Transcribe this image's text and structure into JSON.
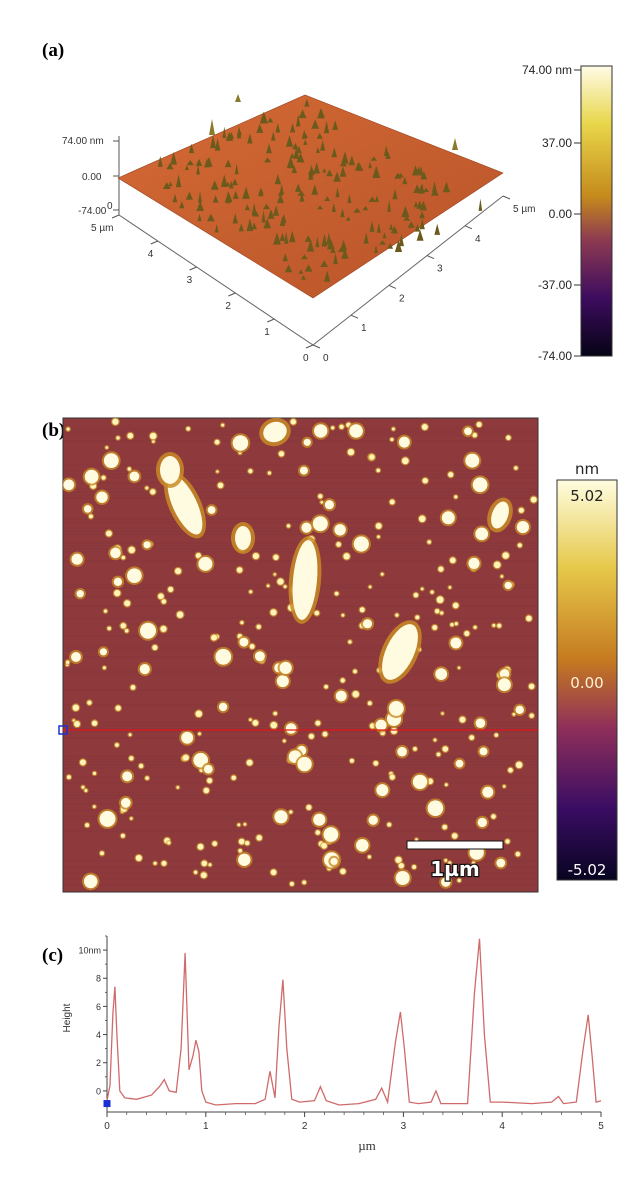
{
  "panels": {
    "a": {
      "label": "(a)",
      "z_top_label": "74.00 nm",
      "z_mid_label": "0.00",
      "z_bottom_label": "-74.00",
      "left_axis_ticks": [
        "5 µm",
        "4",
        "3",
        "2",
        "1",
        "0"
      ],
      "right_axis_ticks": [
        "0",
        "1",
        "2",
        "3",
        "4",
        "5 µm"
      ],
      "right_axis_zero": "0",
      "colorbar": {
        "labels": [
          "74.00 nm",
          "37.00",
          "0.00",
          "-37.00",
          "-74.00"
        ],
        "colors": [
          "#fffbe6",
          "#e8d64a",
          "#c58a1b",
          "#8d3a52",
          "#3d0c5e",
          "#060316"
        ]
      },
      "surface_color": "#c9602e",
      "peak_color": "#6b5a1c"
    },
    "b": {
      "label": "(b)",
      "scale_bar_label": "1µm",
      "colorbar": {
        "unit": "nm",
        "labels": [
          "5.02",
          "0.00",
          "-5.02"
        ],
        "colors": [
          "#fffde0",
          "#e6c84a",
          "#c57a20",
          "#8f2f5a",
          "#3a0d64",
          "#080420"
        ]
      },
      "background_color": "#8e3a3c",
      "particle_color": "#fff3b8",
      "profile_line_color": "#e01818"
    },
    "c": {
      "label": "(c)",
      "chart_data": {
        "type": "line",
        "title": "",
        "xlabel": "µm",
        "ylabel": "Height",
        "xlim": [
          0,
          5
        ],
        "ylim": [
          -1.5,
          11
        ],
        "x_ticks": [
          0,
          1,
          2,
          3,
          4,
          5
        ],
        "y_ticks": [
          {
            "value": 10,
            "label": "10nm"
          },
          {
            "value": 8,
            "label": "8"
          },
          {
            "value": 6,
            "label": "6"
          },
          {
            "value": 4,
            "label": "4"
          },
          {
            "value": 2,
            "label": "2"
          },
          {
            "value": 0,
            "label": "0"
          }
        ],
        "line_color": "#d06a6a",
        "marker": {
          "x": 0,
          "y": -0.9,
          "color": "#1a2fd6"
        },
        "series": [
          {
            "x": [
              0,
              0.03,
              0.06,
              0.08,
              0.1,
              0.13,
              0.18,
              0.3,
              0.45,
              0.53,
              0.58,
              0.63,
              0.7,
              0.75,
              0.79,
              0.83,
              0.87,
              0.9,
              0.93,
              0.96,
              1.0,
              1.1,
              1.3,
              1.5,
              1.6,
              1.65,
              1.7,
              1.74,
              1.78,
              1.82,
              1.87,
              1.95,
              2.1,
              2.16,
              2.22,
              2.35,
              2.55,
              2.72,
              2.78,
              2.84,
              2.92,
              2.97,
              3.01,
              3.06,
              3.15,
              3.28,
              3.33,
              3.38,
              3.5,
              3.65,
              3.72,
              3.77,
              3.82,
              3.88,
              4.0,
              4.3,
              4.5,
              4.57,
              4.62,
              4.75,
              4.82,
              4.87,
              4.91,
              4.95,
              5.0
            ],
            "y": [
              -0.7,
              0.4,
              5.5,
              7.4,
              4.0,
              0.0,
              -0.5,
              -0.6,
              -0.3,
              0.3,
              0.8,
              0.0,
              -0.1,
              3.0,
              9.8,
              1.5,
              2.5,
              3.6,
              2.8,
              0.0,
              -0.8,
              -1.0,
              -0.9,
              -0.9,
              -0.6,
              1.4,
              -0.5,
              4.5,
              7.9,
              3.0,
              -0.6,
              -0.8,
              -0.7,
              0.3,
              -0.7,
              -1.0,
              -0.9,
              -0.6,
              0.2,
              -0.8,
              3.5,
              5.6,
              3.0,
              -0.8,
              -0.9,
              -0.8,
              0.0,
              -0.9,
              -0.9,
              -0.9,
              7.0,
              10.8,
              4.0,
              -0.8,
              -0.8,
              -0.9,
              -0.8,
              -0.4,
              -0.9,
              -0.8,
              3.0,
              5.4,
              2.5,
              -0.8,
              -0.7
            ]
          }
        ]
      }
    }
  }
}
